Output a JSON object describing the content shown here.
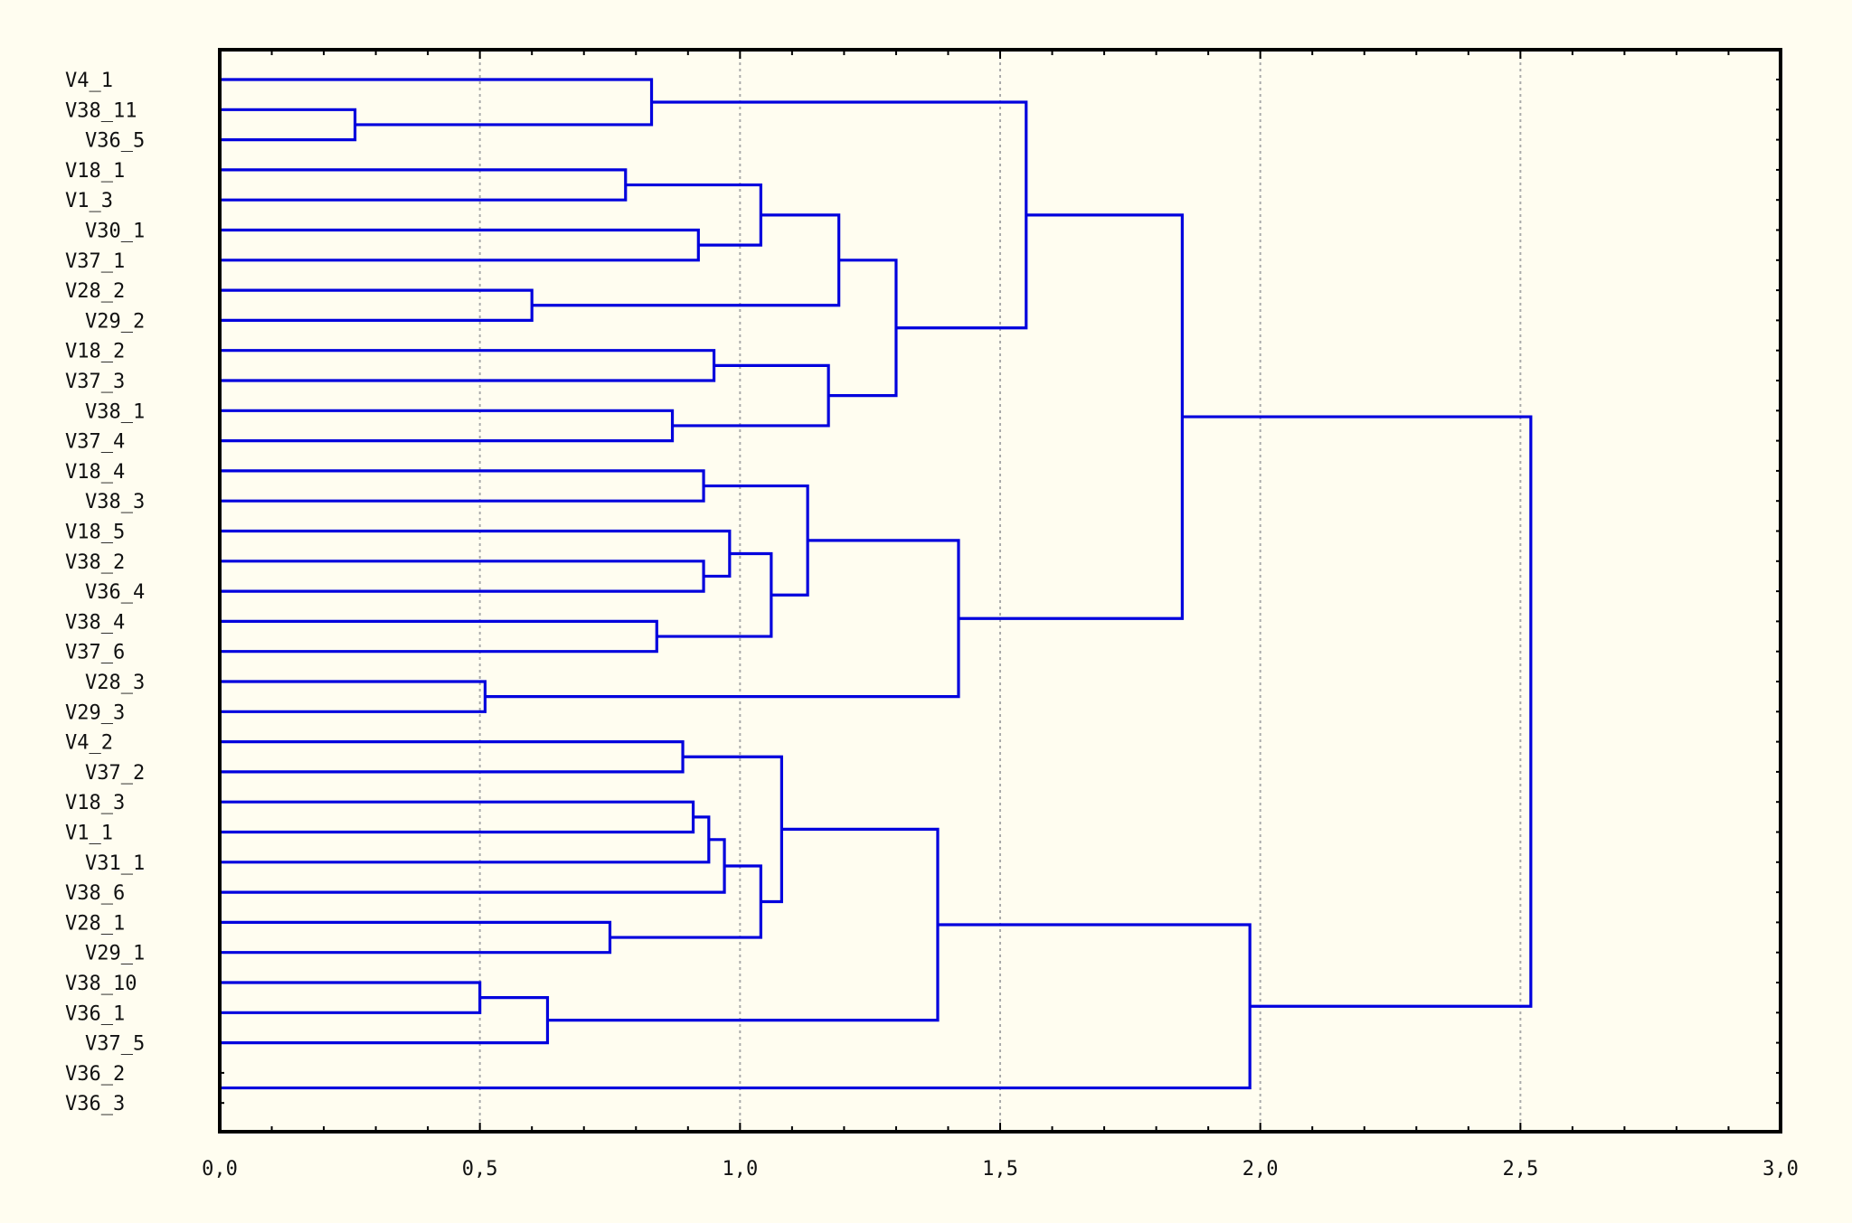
{
  "chart_data": {
    "type": "dendrogram",
    "orientation": "horizontal",
    "leaves": [
      "V4_1",
      "V38_11",
      "V36_5",
      "V18_1",
      "V1_3",
      "V30_1",
      "V37_1",
      "V28_2",
      "V29_2",
      "V18_2",
      "V37_3",
      "V38_1",
      "V37_4",
      "V18_4",
      "V38_3",
      "V18_5",
      "V38_2",
      "V36_4",
      "V38_4",
      "V37_6",
      "V28_3",
      "V29_3",
      "V4_2",
      "V37_2",
      "V18_3",
      "V1_1",
      "V31_1",
      "V38_6",
      "V28_1",
      "V29_1",
      "V38_10",
      "V36_1",
      "V37_5",
      "V36_2",
      "V36_3"
    ],
    "merges": [
      {
        "left": "V38_11",
        "right": "V36_5",
        "height": 0.26
      },
      {
        "left": "V4_1",
        "right": 0,
        "height": 0.83
      },
      {
        "left": "V18_1",
        "right": "V1_3",
        "height": 0.78
      },
      {
        "left": "V30_1",
        "right": "V37_1",
        "height": 0.92
      },
      {
        "left": 2,
        "right": 3,
        "height": 1.04
      },
      {
        "left": "V28_2",
        "right": "V29_2",
        "height": 0.6
      },
      {
        "left": 4,
        "right": 5,
        "height": 1.19
      },
      {
        "left": "V18_2",
        "right": "V37_3",
        "height": 0.95
      },
      {
        "left": "V38_1",
        "right": "V37_4",
        "height": 0.87
      },
      {
        "left": 7,
        "right": 8,
        "height": 1.17
      },
      {
        "left": 6,
        "right": 9,
        "height": 1.3
      },
      {
        "left": 1,
        "right": 10,
        "height": 1.55
      },
      {
        "left": "V18_4",
        "right": "V38_3",
        "height": 0.93
      },
      {
        "left": "V38_2",
        "right": "V36_4",
        "height": 0.93
      },
      {
        "left": "V18_5",
        "right": 13,
        "height": 0.98
      },
      {
        "left": "V38_4",
        "right": "V37_6",
        "height": 0.84
      },
      {
        "left": 14,
        "right": 15,
        "height": 1.06
      },
      {
        "left": 12,
        "right": 16,
        "height": 1.13
      },
      {
        "left": "V28_3",
        "right": "V29_3",
        "height": 0.51
      },
      {
        "left": 17,
        "right": 18,
        "height": 1.42
      },
      {
        "left": 11,
        "right": 19,
        "height": 1.85
      },
      {
        "left": "V4_2",
        "right": "V37_2",
        "height": 0.89
      },
      {
        "left": "V18_3",
        "right": "V1_1",
        "height": 0.91
      },
      {
        "left": 22,
        "right": "V31_1",
        "height": 0.94
      },
      {
        "left": 23,
        "right": "V38_6",
        "height": 0.97
      },
      {
        "left": "V28_1",
        "right": "V29_1",
        "height": 0.75
      },
      {
        "left": 24,
        "right": 25,
        "height": 1.04
      },
      {
        "left": 21,
        "right": 26,
        "height": 1.08
      },
      {
        "left": "V38_10",
        "right": "V36_1",
        "height": 0.5
      },
      {
        "left": 28,
        "right": "V37_5",
        "height": 0.63
      },
      {
        "left": 27,
        "right": 29,
        "height": 1.38
      },
      {
        "left": "V36_2",
        "right": "V36_3",
        "height": 0.0
      },
      {
        "left": 30,
        "right": 31,
        "height": 1.98
      },
      {
        "left": 20,
        "right": 32,
        "height": 2.52
      }
    ],
    "xlim": [
      0,
      3.0
    ],
    "xticks": [
      "0,0",
      "0,5",
      "1,0",
      "1,5",
      "2,0",
      "2,5",
      "3,0"
    ],
    "grid": true,
    "colors": {
      "link": "#0000dd",
      "background": "#fffdf0"
    }
  }
}
